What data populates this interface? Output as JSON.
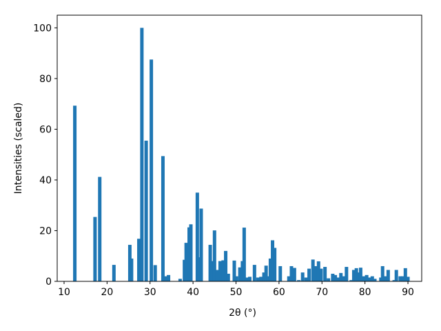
{
  "chart_data": {
    "type": "bar",
    "xlabel": "2θ (°)",
    "ylabel": "Intensities (scaled)",
    "color": "#1f77b4",
    "x": [
      12.5,
      17.2,
      18.3,
      21.6,
      25.3,
      25.7,
      27.4,
      28.1,
      29.1,
      30.3,
      31.2,
      33.0,
      33.6,
      34.3,
      37.0,
      38.0,
      38.4,
      39.1,
      39.5,
      41.0,
      41.4,
      41.9,
      44.0,
      44.5,
      45.0,
      45.6,
      46.3,
      47.0,
      47.6,
      48.2,
      49.6,
      50.1,
      50.9,
      51.5,
      51.9,
      52.5,
      53.2,
      54.3,
      55.1,
      55.8,
      56.5,
      57.0,
      57.5,
      58.0,
      58.5,
      59.0,
      60.3,
      62.3,
      62.9,
      63.6,
      64.6,
      65.5,
      66.3,
      67.0,
      67.9,
      68.5,
      69.2,
      69.8,
      70.7,
      71.5,
      72.5,
      73.1,
      73.7,
      74.4,
      75.0,
      75.7,
      76.8,
      77.4,
      78.0,
      78.5,
      79.0,
      79.7,
      80.4,
      81.1,
      81.7,
      82.3,
      83.7,
      84.1,
      84.7,
      85.4,
      86.8,
      87.3,
      88.2,
      88.8,
      89.4,
      90.0
    ],
    "values": [
      69.3,
      25.4,
      41.2,
      6.5,
      14.4,
      9,
      16.8,
      100,
      55.5,
      87.5,
      6.4,
      49.4,
      2,
      2.5,
      1,
      8.5,
      15.2,
      21.3,
      22.5,
      35,
      9.5,
      28.7,
      14.4,
      8,
      20.1,
      4.5,
      8,
      8.3,
      12,
      3,
      8.2,
      2,
      5.5,
      8,
      21.2,
      1.5,
      1.8,
      6.5,
      1.5,
      1.8,
      3.5,
      6.2,
      2,
      9,
      16.2,
      13.2,
      6,
      2,
      6,
      5.3,
      0.5,
      3.5,
      1.5,
      5,
      8.6,
      6,
      7.9,
      5,
      5.7,
      1.2,
      3,
      2.5,
      1.5,
      3.3,
      2,
      5.7,
      0.5,
      4.5,
      5.2,
      3.5,
      5.4,
      2,
      2.5,
      1.5,
      2,
      1,
      1.5,
      6,
      2,
      4.5,
      0.5,
      4.5,
      2,
      2,
      5.2,
      1.8
    ],
    "xlim": [
      8.4,
      93.2
    ],
    "xticks": [
      10,
      20,
      30,
      40,
      50,
      60,
      70,
      80,
      90
    ],
    "ylim": [
      0,
      105
    ],
    "yticks": [
      0,
      20,
      40,
      60,
      80,
      100
    ]
  }
}
